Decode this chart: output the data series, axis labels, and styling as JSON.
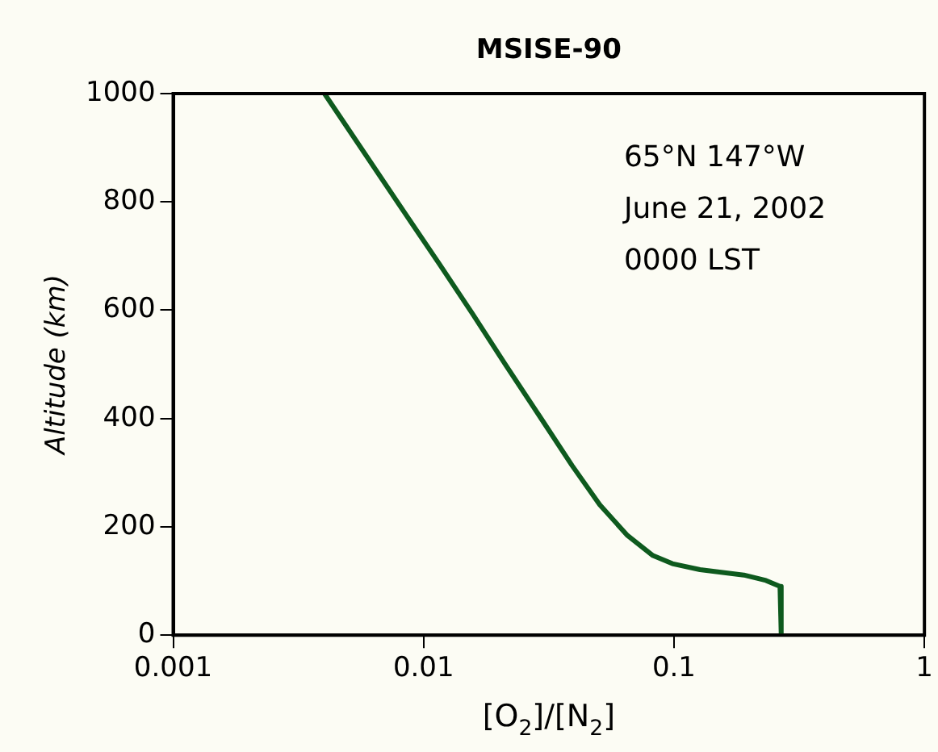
{
  "chart_data": {
    "type": "line",
    "title": "MSISE-90",
    "xlabel": "[O$_{2}$]/[N$_{2}$]",
    "ylabel": "Altitude (km)",
    "log": "x",
    "xlim": [
      0.001,
      1
    ],
    "xticks": [
      0.001,
      0.01,
      0.1,
      1
    ],
    "ylim": [
      0,
      1000
    ],
    "yticks": [
      0,
      200,
      400,
      600,
      800,
      1000
    ],
    "grid": false,
    "legend": false,
    "marker": "none",
    "line_style": "solid",
    "annotations": [
      "65°N 147°W",
      "June 21, 2002",
      "0000 LST"
    ],
    "series": [
      {
        "color": "#0e5a1e",
        "x": [
          0.00402,
          0.0084,
          0.0115,
          0.0157,
          0.0212,
          0.0288,
          0.0392,
          0.0505,
          0.0652,
          0.0824,
          0.0985,
          0.127,
          0.19,
          0.233,
          0.265,
          0.268
        ],
        "values": [
          1000,
          780,
          687,
          593,
          500,
          407,
          313,
          241,
          184,
          147,
          132,
          121,
          111,
          101,
          90,
          0
        ]
      }
    ]
  }
}
